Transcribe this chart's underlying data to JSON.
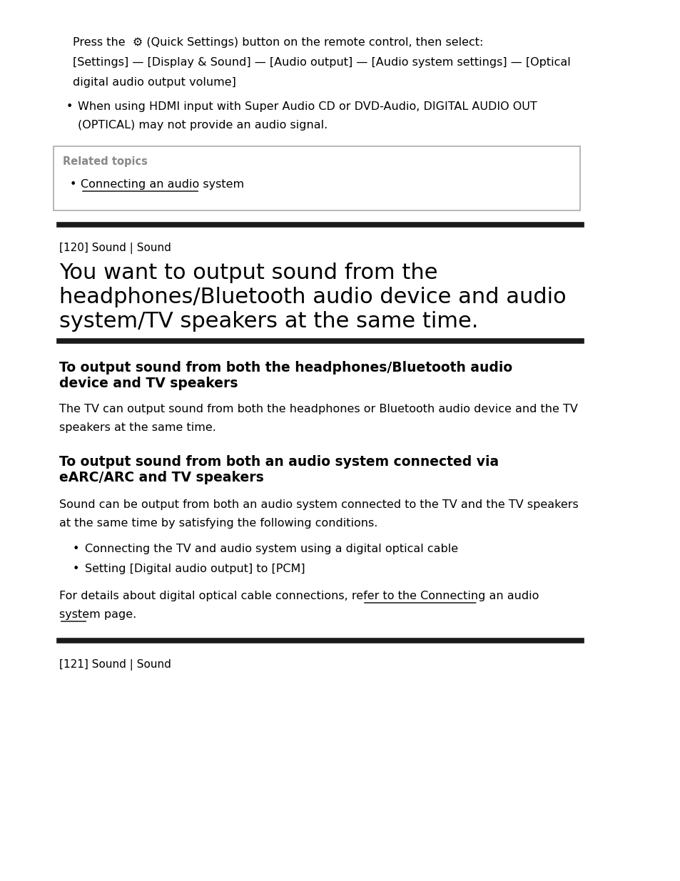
{
  "bg_color": "#ffffff",
  "text_color": "#000000",
  "gray_color": "#888888",
  "link_color": "#000000",
  "line_color": "#1a1a1a",
  "box_border_color": "#aaaaaa",
  "page_label1": "[120] Sound | Sound",
  "main_title_line1": "You want to output sound from the",
  "main_title_line2": "headphones/Bluetooth audio device and audio",
  "main_title_line3": "system/TV speakers at the same time.",
  "page_label2": "[121] Sound | Sound"
}
